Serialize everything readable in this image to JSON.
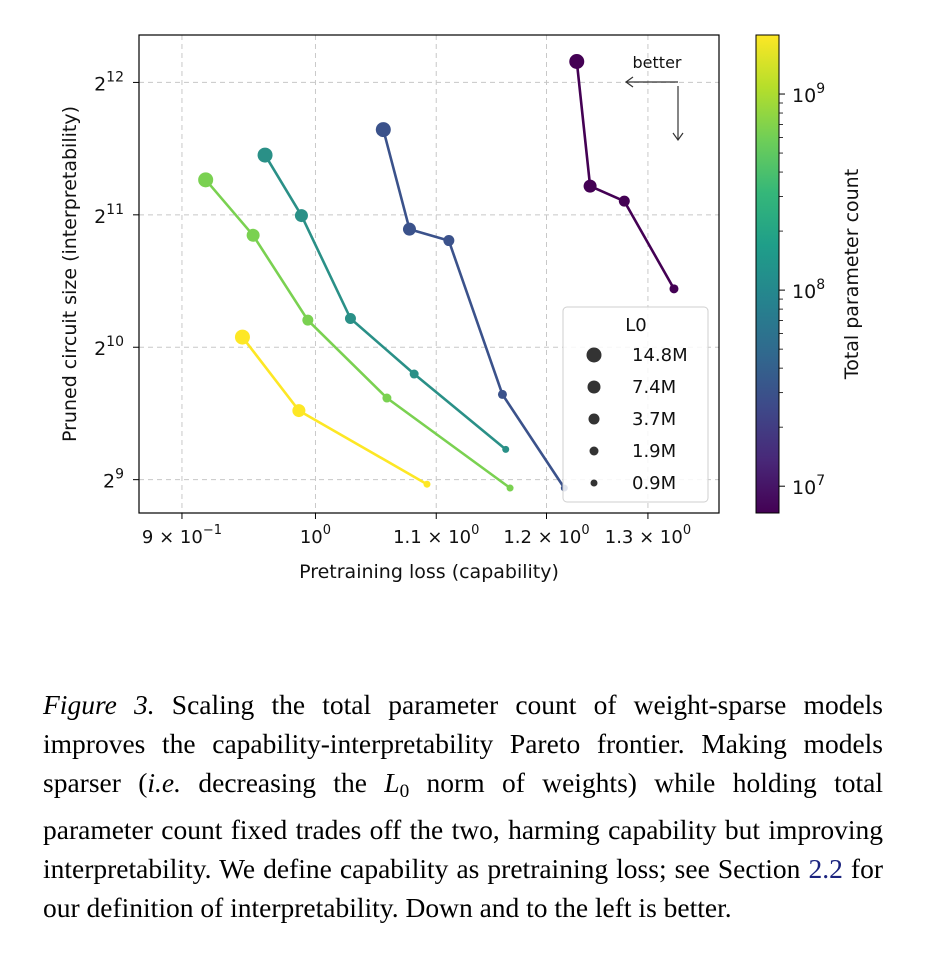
{
  "chart_data": {
    "type": "scatter",
    "subtype": "connected scatter (lines + markers)",
    "xlabel": "Pretraining loss (capability)",
    "ylabel": "Pruned circuit size (interpretability)",
    "xscale": "log",
    "yscale": "log2",
    "xlim": [
      0.87,
      1.375
    ],
    "ylim": [
      430,
      5250
    ],
    "grid": true,
    "x_ticks": [
      {
        "value": 0.9,
        "label": "9 × 10",
        "exp": "−1"
      },
      {
        "value": 1.0,
        "label": "10",
        "exp": "0"
      },
      {
        "value": 1.1,
        "label": "1.1 × 10",
        "exp": "0"
      },
      {
        "value": 1.2,
        "label": "1.2 × 10",
        "exp": "0"
      },
      {
        "value": 1.3,
        "label": "1.3 × 10",
        "exp": "0"
      }
    ],
    "y_ticks": [
      {
        "value": 512,
        "base": "2",
        "exp": "9"
      },
      {
        "value": 1024,
        "base": "2",
        "exp": "10"
      },
      {
        "value": 2048,
        "base": "2",
        "exp": "11"
      },
      {
        "value": 4096,
        "base": "2",
        "exp": "12"
      }
    ],
    "marker_size_legend": {
      "title": "L0",
      "entries": [
        {
          "label": "14.8M",
          "radius": 7.5
        },
        {
          "label": "7.4M",
          "radius": 6.5
        },
        {
          "label": "3.7M",
          "radius": 5.5
        },
        {
          "label": "1.9M",
          "radius": 4.5
        },
        {
          "label": "0.9M",
          "radius": 3.5
        }
      ]
    },
    "colorbar": {
      "label": "Total parameter count",
      "scale": "log",
      "range": [
        7300000.0,
        2000000000.0
      ],
      "ticks": [
        {
          "value": 10000000.0,
          "base": "10",
          "exp": "7"
        },
        {
          "value": 100000000.0,
          "base": "10",
          "exp": "8"
        },
        {
          "value": 1000000000.0,
          "base": "10",
          "exp": "9"
        }
      ]
    },
    "annotation": {
      "text": "better",
      "meaning": "arrows pointing left and down"
    },
    "series": [
      {
        "name": "yellow",
        "color": "#fde725",
        "points": [
          {
            "x": 0.944,
            "y": 1080,
            "l0": "14.8M"
          },
          {
            "x": 0.987,
            "y": 735,
            "l0": "7.4M"
          },
          {
            "x": 1.092,
            "y": 500,
            "l0": "0.9M"
          }
        ]
      },
      {
        "name": "light-green",
        "color": "#7ad151",
        "points": [
          {
            "x": 0.917,
            "y": 2460,
            "l0": "14.8M"
          },
          {
            "x": 0.952,
            "y": 1840,
            "l0": "7.4M"
          },
          {
            "x": 0.994,
            "y": 1180,
            "l0": "3.7M"
          },
          {
            "x": 1.058,
            "y": 785,
            "l0": "1.9M"
          },
          {
            "x": 1.166,
            "y": 490,
            "l0": "0.9M"
          }
        ]
      },
      {
        "name": "teal",
        "color": "#2a9087",
        "points": [
          {
            "x": 0.961,
            "y": 2800,
            "l0": "14.8M"
          },
          {
            "x": 0.989,
            "y": 2040,
            "l0": "7.4M"
          },
          {
            "x": 1.028,
            "y": 1190,
            "l0": "3.7M"
          },
          {
            "x": 1.081,
            "y": 890,
            "l0": "1.9M"
          },
          {
            "x": 1.162,
            "y": 600,
            "l0": "0.9M"
          }
        ]
      },
      {
        "name": "slate-blue",
        "color": "#3b528b",
        "points": [
          {
            "x": 1.055,
            "y": 3200,
            "l0": "14.8M"
          },
          {
            "x": 1.077,
            "y": 1900,
            "l0": "7.4M"
          },
          {
            "x": 1.111,
            "y": 1790,
            "l0": "3.7M"
          },
          {
            "x": 1.159,
            "y": 800,
            "l0": "1.9M"
          },
          {
            "x": 1.217,
            "y": 490,
            "l0": "0.9M"
          }
        ]
      },
      {
        "name": "dark-purple",
        "color": "#440154",
        "points": [
          {
            "x": 1.229,
            "y": 4570,
            "l0": "14.8M"
          },
          {
            "x": 1.242,
            "y": 2380,
            "l0": "7.4M"
          },
          {
            "x": 1.276,
            "y": 2200,
            "l0": "3.7M"
          },
          {
            "x": 1.327,
            "y": 1390,
            "l0": "1.9M"
          }
        ]
      }
    ]
  },
  "caption": {
    "label": "Figure 3.",
    "part1": " Scaling the total parameter count of weight-sparse models improves the capability-interpretability Pareto frontier. Making models sparser (",
    "ie": "i.e.",
    "part2": " decreasing the ",
    "math_base": "L",
    "math_sub": "0",
    "part3": " norm of weights) while holding total parameter count fixed trades off the two, harming capability but improving interpretability. We define capability as pretraining loss; see Section ",
    "ref": "2.2",
    "part4": " for our definition of interpretability. Down and to the left is better."
  }
}
